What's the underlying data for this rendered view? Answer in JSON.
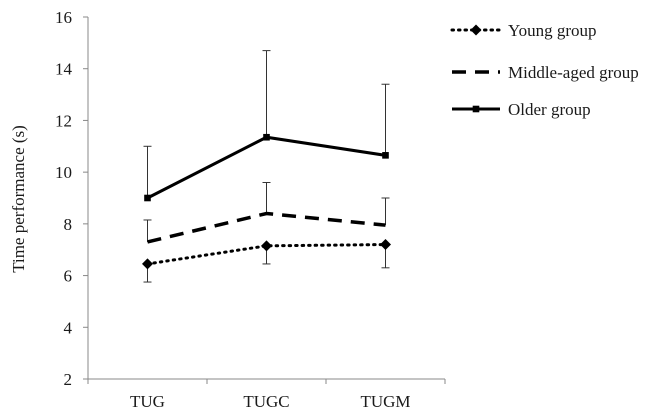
{
  "chart_data": {
    "type": "line",
    "title": "",
    "xlabel": "",
    "ylabel": "Time performance (s)",
    "ylim": [
      2,
      16
    ],
    "yticks": [
      2,
      4,
      6,
      8,
      10,
      12,
      14,
      16
    ],
    "categories": [
      "TUG",
      "TUGC",
      "TUGM"
    ],
    "grid": false,
    "legend_position": "top-right",
    "series": [
      {
        "name": "Young group",
        "values": [
          6.45,
          7.15,
          7.2
        ],
        "error_low": [
          0.7,
          0.7,
          0.9
        ],
        "error_high": [
          0,
          0,
          0
        ],
        "line_style": "dotted",
        "marker": "diamond",
        "color": "#000000"
      },
      {
        "name": "Middle-aged group",
        "values": [
          7.3,
          8.4,
          7.95
        ],
        "error_low": [
          0,
          0,
          0
        ],
        "error_high": [
          0.85,
          1.2,
          1.05
        ],
        "line_style": "dashed",
        "marker": "none",
        "color": "#000000"
      },
      {
        "name": "Older group",
        "values": [
          9.0,
          11.35,
          10.65
        ],
        "error_low": [
          0,
          0,
          0
        ],
        "error_high": [
          2.0,
          3.35,
          2.75
        ],
        "line_style": "solid",
        "marker": "square",
        "color": "#000000"
      }
    ]
  }
}
